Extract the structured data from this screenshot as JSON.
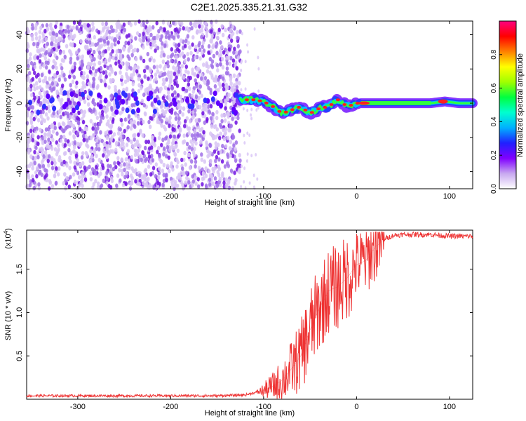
{
  "title": "C2E1.2025.335.21.31.G32",
  "chart_data": [
    {
      "type": "heatmap",
      "xlabel": "Height of straight line (km)",
      "ylabel": "Frequency (Hz)",
      "xlim": [
        -355,
        125
      ],
      "ylim": [
        -50,
        48
      ],
      "xticks": [
        -300,
        -200,
        -100,
        0,
        100
      ],
      "yticks": [
        -40,
        -20,
        0,
        20,
        40
      ],
      "colorbar": {
        "label": "Normalized spectral amplitude",
        "range": [
          0,
          1
        ],
        "ticks": [
          0.0,
          0.2,
          0.4,
          0.6,
          0.8
        ],
        "tick_labels": [
          "0.0",
          "0.2",
          "0.4",
          "0.6",
          "0.8"
        ],
        "colors": [
          "#ffffff",
          "#c8a8f0",
          "#8000ff",
          "#2020ff",
          "#00b0ff",
          "#00ffd0",
          "#00ff40",
          "#a0ff00",
          "#ffff00",
          "#ff8000",
          "#ff0000",
          "#ff0080"
        ]
      },
      "description_regions": {
        "noise_region_x": [
          -355,
          -125
        ],
        "signal_track": [
          [
            -125,
            2
          ],
          [
            -110,
            2
          ],
          [
            -100,
            1
          ],
          [
            -90,
            -2
          ],
          [
            -80,
            -6
          ],
          [
            -70,
            -4
          ],
          [
            -60,
            -2
          ],
          [
            -50,
            -6
          ],
          [
            -40,
            -3
          ],
          [
            -30,
            -2
          ],
          [
            -20,
            2
          ],
          [
            -10,
            -2
          ],
          [
            0,
            0
          ],
          [
            20,
            0
          ],
          [
            50,
            0
          ],
          [
            80,
            0
          ],
          [
            95,
            1
          ],
          [
            110,
            0
          ],
          [
            125,
            0
          ]
        ]
      }
    },
    {
      "type": "line",
      "xlabel": "Height of straight line (km)",
      "ylabel": "SNR (10 * v/v)",
      "exponent_label": "(x10",
      "exponent_power": "4",
      "exponent_close": ")",
      "xlim": [
        -355,
        125
      ],
      "ylim": [
        0,
        1.95
      ],
      "xticks": [
        -300,
        -200,
        -100,
        0,
        100
      ],
      "yticks": [
        0.5,
        1.0,
        1.5
      ],
      "ytick_labels": [
        "0.5",
        "1.0",
        "1.5"
      ],
      "series": [
        {
          "color": "#ee3333",
          "x": [
            -355,
            -300,
            -250,
            -200,
            -150,
            -120,
            -100,
            -90,
            -80,
            -70,
            -60,
            -50,
            -40,
            -30,
            -20,
            -10,
            0,
            10,
            20,
            30,
            40,
            50,
            60,
            80,
            100,
            125
          ],
          "y": [
            0.04,
            0.04,
            0.04,
            0.04,
            0.04,
            0.05,
            0.1,
            0.15,
            0.22,
            0.35,
            0.5,
            0.8,
            1.05,
            1.25,
            1.3,
            1.4,
            1.55,
            1.6,
            1.75,
            1.85,
            1.89,
            1.9,
            1.9,
            1.9,
            1.88,
            1.88
          ]
        }
      ]
    }
  ]
}
